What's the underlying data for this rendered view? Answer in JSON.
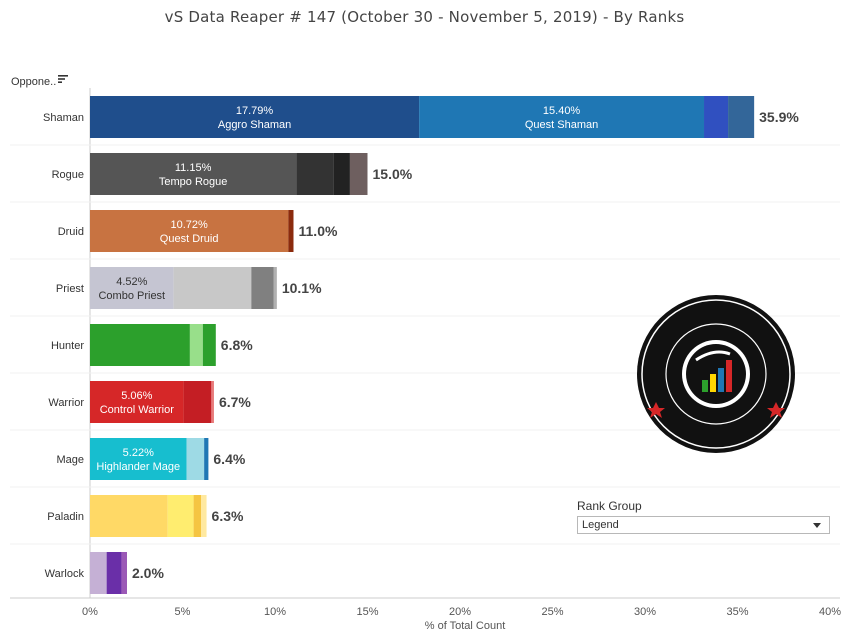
{
  "title": "vS Data Reaper #  147 (October 30 - November 5, 2019) - By Ranks",
  "opponent_label": "Oppone..",
  "rank_group": {
    "title": "Rank Group",
    "selected": "Legend"
  },
  "colors": {
    "axis": "#cccccc",
    "text": "#333333"
  },
  "chart_data": {
    "type": "bar",
    "orientation": "horizontal",
    "stacked": true,
    "xlabel": "% of Total Count",
    "xlim": [
      0,
      40
    ],
    "xticks": [
      "0%",
      "5%",
      "10%",
      "15%",
      "20%",
      "25%",
      "30%",
      "35%",
      "40%"
    ],
    "xtick_values": [
      0,
      5,
      10,
      15,
      20,
      25,
      30,
      35,
      40
    ],
    "categories": [
      {
        "name": "Shaman",
        "total_label": "35.9%",
        "segments": [
          {
            "value": 17.79,
            "color": "#1f4e8c",
            "label_pct": "17.79%",
            "label_name": "Aggro Shaman"
          },
          {
            "value": 15.4,
            "color": "#1f77b4",
            "label_pct": "15.40%",
            "label_name": "Quest Shaman"
          },
          {
            "value": 1.3,
            "color": "#3050c0"
          },
          {
            "value": 1.41,
            "color": "#336699"
          }
        ]
      },
      {
        "name": "Rogue",
        "total_label": "15.0%",
        "segments": [
          {
            "value": 11.15,
            "color": "#555555",
            "label_pct": "11.15%",
            "label_name": "Tempo Rogue"
          },
          {
            "value": 2.0,
            "color": "#333333"
          },
          {
            "value": 0.9,
            "color": "#222222"
          },
          {
            "value": 0.95,
            "color": "#6e5f5f"
          }
        ]
      },
      {
        "name": "Druid",
        "total_label": "11.0%",
        "segments": [
          {
            "value": 10.72,
            "color": "#c87341",
            "label_pct": "10.72%",
            "label_name": "Quest Druid"
          },
          {
            "value": 0.28,
            "color": "#8b2b0d"
          }
        ]
      },
      {
        "name": "Priest",
        "total_label": "10.1%",
        "segments": [
          {
            "value": 4.52,
            "color": "#c5c5d2",
            "label_pct": "4.52%",
            "label_name": "Combo Priest"
          },
          {
            "value": 4.2,
            "color": "#c8c8c8"
          },
          {
            "value": 1.2,
            "color": "#808080"
          },
          {
            "value": 0.18,
            "color": "#b0b0b0"
          }
        ]
      },
      {
        "name": "Hunter",
        "total_label": "6.8%",
        "segments": [
          {
            "value": 5.4,
            "color": "#2ca02c"
          },
          {
            "value": 0.7,
            "color": "#98df8a"
          },
          {
            "value": 0.7,
            "color": "#2ca02c"
          }
        ]
      },
      {
        "name": "Warrior",
        "total_label": "6.7%",
        "segments": [
          {
            "value": 5.06,
            "color": "#d62728",
            "label_pct": "5.06%",
            "label_name": "Control Warrior"
          },
          {
            "value": 1.5,
            "color": "#c41e24"
          },
          {
            "value": 0.14,
            "color": "#e87b7b"
          }
        ]
      },
      {
        "name": "Mage",
        "total_label": "6.4%",
        "segments": [
          {
            "value": 5.22,
            "color": "#17becf",
            "label_pct": "5.22%",
            "label_name": "Highlander Mage"
          },
          {
            "value": 0.95,
            "color": "#9edae5"
          },
          {
            "value": 0.23,
            "color": "#1f77b4"
          }
        ]
      },
      {
        "name": "Paladin",
        "total_label": "6.3%",
        "segments": [
          {
            "value": 4.2,
            "color": "#ffd966"
          },
          {
            "value": 1.4,
            "color": "#ffed6f"
          },
          {
            "value": 0.4,
            "color": "#f5c542"
          },
          {
            "value": 0.3,
            "color": "#ffe9a0"
          }
        ]
      },
      {
        "name": "Warlock",
        "total_label": "2.0%",
        "segments": [
          {
            "value": 0.9,
            "color": "#c5b0d5"
          },
          {
            "value": 0.8,
            "color": "#6a2fa8"
          },
          {
            "value": 0.3,
            "color": "#9b59b6"
          }
        ]
      }
    ]
  }
}
